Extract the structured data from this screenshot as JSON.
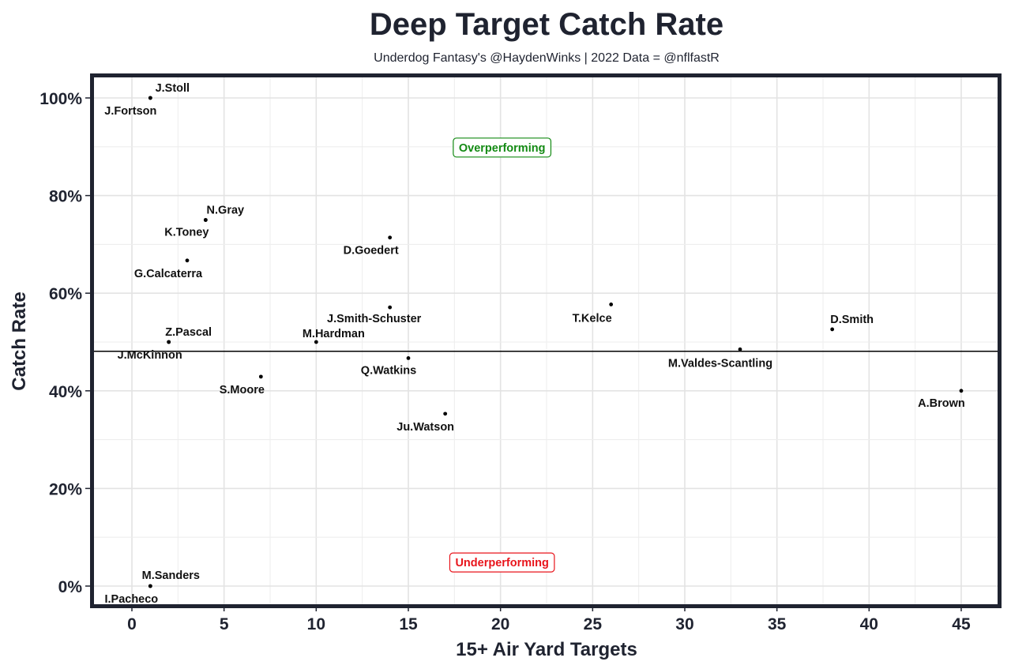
{
  "chart_data": {
    "type": "scatter",
    "title": "Deep Target Catch Rate",
    "subtitle": "Underdog Fantasy's @HaydenWinks | 2022 Data = @nflfastR",
    "xlabel": "15+ Air Yard Targets",
    "ylabel": "Catch Rate",
    "xlim": [
      -2.3,
      47.2
    ],
    "ylim": [
      -4.5,
      105
    ],
    "xticks": [
      0,
      5,
      10,
      15,
      20,
      25,
      30,
      35,
      40,
      45
    ],
    "xtick_labels": [
      "0",
      "5",
      "10",
      "15",
      "20",
      "25",
      "30",
      "35",
      "40",
      "45"
    ],
    "yticks": [
      0,
      20,
      40,
      60,
      80,
      100
    ],
    "ytick_labels": [
      "0%",
      "20%",
      "40%",
      "60%",
      "80%",
      "100%"
    ],
    "grid": true,
    "reference_line_y": 48.1,
    "points": [
      {
        "label": "J.Stoll",
        "x": 1,
        "y": 100
      },
      {
        "label": "J.Fortson",
        "x": 1,
        "y": 100
      },
      {
        "label": "N.Gray",
        "x": 4,
        "y": 75
      },
      {
        "label": "K.Toney",
        "x": 4,
        "y": 75
      },
      {
        "label": "G.Calcaterra",
        "x": 3,
        "y": 66.7
      },
      {
        "label": "D.Goedert",
        "x": 14,
        "y": 71.4
      },
      {
        "label": "J.Smith-Schuster",
        "x": 14,
        "y": 57.1
      },
      {
        "label": "T.Kelce",
        "x": 26,
        "y": 57.7
      },
      {
        "label": "D.Smith",
        "x": 38,
        "y": 52.6
      },
      {
        "label": "Z.Pascal",
        "x": 2,
        "y": 50
      },
      {
        "label": "J.McKinnon",
        "x": 2,
        "y": 50
      },
      {
        "label": "M.Hardman",
        "x": 10,
        "y": 50
      },
      {
        "label": "M.Valdes-Scantling",
        "x": 33,
        "y": 48.5
      },
      {
        "label": "Q.Watkins",
        "x": 15,
        "y": 46.7
      },
      {
        "label": "S.Moore",
        "x": 7,
        "y": 42.9
      },
      {
        "label": "A.Brown",
        "x": 45,
        "y": 40
      },
      {
        "label": "Ju.Watson",
        "x": 17,
        "y": 35.3
      },
      {
        "label": "M.Sanders",
        "x": 1,
        "y": 0
      },
      {
        "label": "I.Pacheco",
        "x": 1,
        "y": 0
      }
    ],
    "annotations": [
      {
        "text": "Overperforming",
        "x": 20,
        "y": 90,
        "color": "#138a13"
      },
      {
        "text": "Underperforming",
        "x": 20,
        "y": 5,
        "color": "#e8141b"
      }
    ]
  }
}
